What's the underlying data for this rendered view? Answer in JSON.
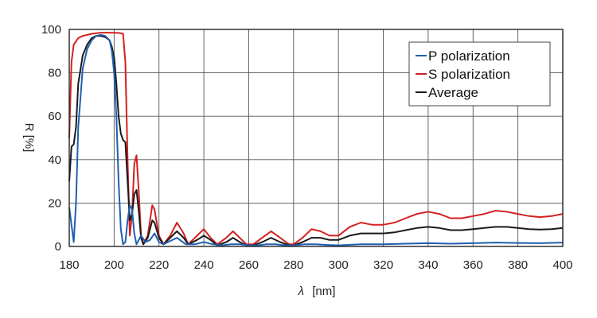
{
  "chart_data": {
    "type": "line",
    "xlabel_symbol": "λ",
    "xlabel_unit": "[nm]",
    "ylabel": "R [%]",
    "xlim": [
      180,
      400
    ],
    "ylim": [
      0,
      100
    ],
    "x_ticks": [
      180,
      200,
      220,
      240,
      260,
      280,
      300,
      320,
      340,
      360,
      380,
      400
    ],
    "y_ticks": [
      0,
      20,
      40,
      60,
      80,
      100
    ],
    "grid": true,
    "legend_position": "top-right",
    "series": [
      {
        "name": "P polarization",
        "color": "#1f5fb0",
        "points": [
          [
            180,
            18
          ],
          [
            181,
            10
          ],
          [
            182,
            2
          ],
          [
            183,
            20
          ],
          [
            184,
            55
          ],
          [
            186,
            82
          ],
          [
            188,
            91
          ],
          [
            190,
            95
          ],
          [
            192,
            97
          ],
          [
            194,
            97.5
          ],
          [
            196,
            97
          ],
          [
            198,
            95
          ],
          [
            199,
            90
          ],
          [
            200,
            80
          ],
          [
            201,
            60
          ],
          [
            202,
            30
          ],
          [
            203,
            8
          ],
          [
            204,
            1
          ],
          [
            205,
            2
          ],
          [
            206,
            12
          ],
          [
            207,
            19
          ],
          [
            208,
            17
          ],
          [
            209,
            6
          ],
          [
            210,
            1
          ],
          [
            212,
            5
          ],
          [
            214,
            2
          ],
          [
            216,
            3
          ],
          [
            218,
            6
          ],
          [
            220,
            2
          ],
          [
            222,
            1
          ],
          [
            224,
            2
          ],
          [
            228,
            4
          ],
          [
            232,
            1
          ],
          [
            236,
            1
          ],
          [
            240,
            2
          ],
          [
            244,
            1
          ],
          [
            248,
            0.5
          ],
          [
            252,
            1
          ],
          [
            256,
            1
          ],
          [
            260,
            0.5
          ],
          [
            264,
            0.5
          ],
          [
            268,
            1
          ],
          [
            272,
            1
          ],
          [
            276,
            0.5
          ],
          [
            280,
            0.5
          ],
          [
            285,
            1
          ],
          [
            290,
            1
          ],
          [
            295,
            0.7
          ],
          [
            300,
            0.5
          ],
          [
            310,
            1
          ],
          [
            320,
            1
          ],
          [
            330,
            1.3
          ],
          [
            340,
            1.5
          ],
          [
            350,
            1.3
          ],
          [
            360,
            1.5
          ],
          [
            370,
            1.8
          ],
          [
            380,
            1.6
          ],
          [
            390,
            1.5
          ],
          [
            400,
            1.8
          ]
        ]
      },
      {
        "name": "S polarization",
        "color": "#d42020",
        "points": [
          [
            180,
            50
          ],
          [
            181,
            85
          ],
          [
            182,
            93
          ],
          [
            184,
            96
          ],
          [
            186,
            97
          ],
          [
            190,
            98
          ],
          [
            194,
            98.5
          ],
          [
            198,
            98.5
          ],
          [
            202,
            98.4
          ],
          [
            204,
            98
          ],
          [
            205,
            85
          ],
          [
            206,
            40
          ],
          [
            207,
            5
          ],
          [
            208,
            15
          ],
          [
            209,
            38
          ],
          [
            210,
            42
          ],
          [
            211,
            25
          ],
          [
            212,
            5
          ],
          [
            213,
            1
          ],
          [
            215,
            5
          ],
          [
            217,
            19
          ],
          [
            218,
            17
          ],
          [
            220,
            5
          ],
          [
            222,
            1
          ],
          [
            225,
            5
          ],
          [
            228,
            11
          ],
          [
            231,
            6
          ],
          [
            233,
            1
          ],
          [
            237,
            5
          ],
          [
            240,
            8
          ],
          [
            243,
            4
          ],
          [
            246,
            1
          ],
          [
            250,
            4
          ],
          [
            253,
            7
          ],
          [
            256,
            4
          ],
          [
            259,
            1
          ],
          [
            262,
            1
          ],
          [
            266,
            4
          ],
          [
            270,
            7
          ],
          [
            274,
            4
          ],
          [
            278,
            1
          ],
          [
            280,
            1
          ],
          [
            284,
            4
          ],
          [
            288,
            8
          ],
          [
            292,
            7
          ],
          [
            296,
            5
          ],
          [
            300,
            5
          ],
          [
            305,
            9
          ],
          [
            310,
            11
          ],
          [
            315,
            10
          ],
          [
            320,
            10
          ],
          [
            325,
            11
          ],
          [
            330,
            13
          ],
          [
            335,
            15
          ],
          [
            340,
            16
          ],
          [
            345,
            15
          ],
          [
            350,
            13
          ],
          [
            355,
            13
          ],
          [
            360,
            14
          ],
          [
            365,
            15
          ],
          [
            370,
            16.5
          ],
          [
            375,
            16
          ],
          [
            380,
            15
          ],
          [
            385,
            14
          ],
          [
            390,
            13.5
          ],
          [
            395,
            14
          ],
          [
            400,
            15
          ]
        ]
      },
      {
        "name": "Average",
        "color": "#1a1a1a",
        "points": [
          [
            180,
            30
          ],
          [
            181,
            46
          ],
          [
            182,
            47
          ],
          [
            183,
            55
          ],
          [
            184,
            75
          ],
          [
            186,
            88
          ],
          [
            188,
            93
          ],
          [
            190,
            96
          ],
          [
            192,
            97
          ],
          [
            194,
            97
          ],
          [
            196,
            96.5
          ],
          [
            198,
            95
          ],
          [
            199,
            92
          ],
          [
            200,
            87
          ],
          [
            201,
            75
          ],
          [
            202,
            60
          ],
          [
            203,
            52
          ],
          [
            204,
            49
          ],
          [
            205,
            48
          ],
          [
            206,
            30
          ],
          [
            207,
            12
          ],
          [
            208,
            15
          ],
          [
            209,
            24
          ],
          [
            210,
            26
          ],
          [
            211,
            16
          ],
          [
            212,
            4
          ],
          [
            213,
            1
          ],
          [
            215,
            4
          ],
          [
            217,
            12
          ],
          [
            218,
            11
          ],
          [
            220,
            4
          ],
          [
            222,
            1
          ],
          [
            225,
            4
          ],
          [
            228,
            7
          ],
          [
            231,
            4
          ],
          [
            233,
            1
          ],
          [
            237,
            3
          ],
          [
            240,
            5
          ],
          [
            243,
            3
          ],
          [
            246,
            0.5
          ],
          [
            250,
            2
          ],
          [
            253,
            4
          ],
          [
            256,
            2
          ],
          [
            259,
            0.5
          ],
          [
            262,
            0.5
          ],
          [
            266,
            2
          ],
          [
            270,
            4
          ],
          [
            274,
            2
          ],
          [
            278,
            0.5
          ],
          [
            280,
            0.5
          ],
          [
            284,
            2
          ],
          [
            288,
            4
          ],
          [
            292,
            4
          ],
          [
            296,
            3
          ],
          [
            300,
            3
          ],
          [
            305,
            5
          ],
          [
            310,
            6
          ],
          [
            315,
            6
          ],
          [
            320,
            6
          ],
          [
            325,
            6.5
          ],
          [
            330,
            7.5
          ],
          [
            335,
            8.5
          ],
          [
            340,
            9
          ],
          [
            345,
            8.5
          ],
          [
            350,
            7.5
          ],
          [
            355,
            7.5
          ],
          [
            360,
            8
          ],
          [
            365,
            8.5
          ],
          [
            370,
            9
          ],
          [
            375,
            9
          ],
          [
            380,
            8.5
          ],
          [
            385,
            8
          ],
          [
            390,
            7.8
          ],
          [
            395,
            8
          ],
          [
            400,
            8.5
          ]
        ]
      }
    ]
  }
}
